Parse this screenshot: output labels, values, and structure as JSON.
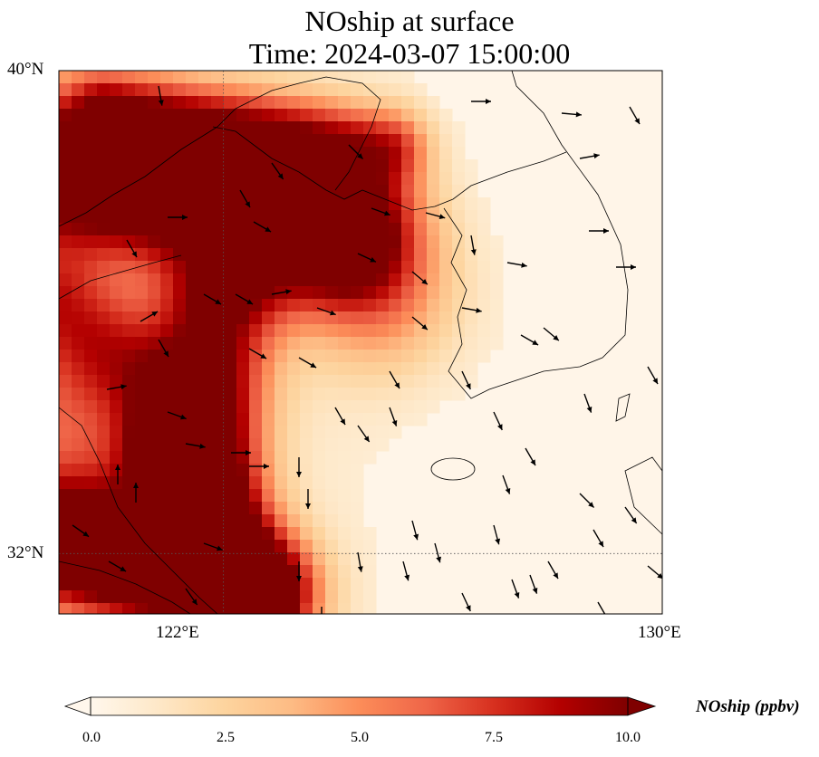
{
  "title": {
    "line1": "NOship at surface",
    "line2": "Time: 2024-03-07 15:00:00"
  },
  "map": {
    "extent": {
      "lon_min": 119.0,
      "lon_max": 130.0,
      "lat_min": 31.0,
      "lat_max": 40.0
    },
    "gridlines": {
      "lon": [
        122,
        130
      ],
      "lat": [
        32,
        40
      ]
    },
    "lat_labels": [
      "40°N",
      "32°N"
    ],
    "lon_labels": [
      "122°E",
      "130°E"
    ]
  },
  "colorbar": {
    "label": "NOship (ppbv)",
    "ticks": [
      "0.0",
      "2.5",
      "5.0",
      "7.5",
      "10.0"
    ],
    "colormap": [
      "#fff7ec",
      "#fee8c8",
      "#fdd49e",
      "#fdbb84",
      "#fc8d59",
      "#ef6548",
      "#d7301f",
      "#b30000",
      "#7f0000"
    ]
  }
}
